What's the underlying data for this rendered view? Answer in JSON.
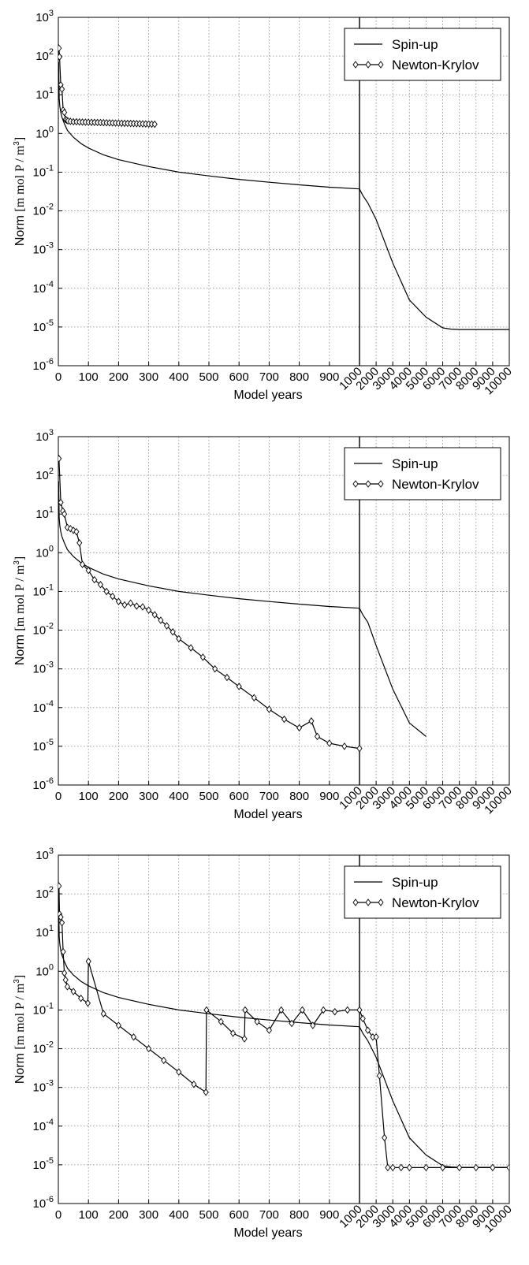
{
  "chart_data": [
    {
      "type": "line",
      "title": "",
      "xlabel": "Model years",
      "ylabel": "Norm [m mol P / m³]",
      "ylabel_parts": [
        "Norm ",
        "[m mol P / m",
        "3",
        "]"
      ],
      "yscale": "log",
      "ylim": [
        1e-06,
        1000.0
      ],
      "x_axis_break": 1000,
      "xlim": [
        0,
        10000
      ],
      "grid": true,
      "legend_placement": "top-right",
      "y_ticks": [
        {
          "base": "10",
          "exp": "-6",
          "value": 1e-06
        },
        {
          "base": "10",
          "exp": "-5",
          "value": 1e-05
        },
        {
          "base": "10",
          "exp": "-4",
          "value": 0.0001
        },
        {
          "base": "10",
          "exp": "-3",
          "value": 0.001
        },
        {
          "base": "10",
          "exp": "-2",
          "value": 0.01
        },
        {
          "base": "10",
          "exp": "-1",
          "value": 0.1
        },
        {
          "base": "10",
          "exp": "0",
          "value": 1
        },
        {
          "base": "10",
          "exp": "1",
          "value": 10
        },
        {
          "base": "10",
          "exp": "2",
          "value": 100
        },
        {
          "base": "10",
          "exp": "3",
          "value": 1000
        }
      ],
      "x_ticks_left": [
        "0",
        "100",
        "200",
        "300",
        "400",
        "500",
        "600",
        "700",
        "800",
        "900"
      ],
      "x_ticks_right": [
        "1000",
        "2000",
        "3000",
        "4000",
        "5000",
        "6000",
        "7000",
        "8000",
        "9000",
        "10000"
      ],
      "series": [
        {
          "name": "Spin-up",
          "style": "line",
          "x": [
            1,
            2,
            3,
            5,
            8,
            12,
            20,
            30,
            50,
            75,
            100,
            150,
            200,
            300,
            400,
            500,
            600,
            700,
            800,
            900,
            1000,
            1200,
            1500,
            2000,
            3000,
            4000,
            5000,
            6000,
            6500,
            7000,
            8000,
            9000,
            10000
          ],
          "y": [
            70,
            20,
            8,
            5,
            3.5,
            2.6,
            1.8,
            1.2,
            0.8,
            0.55,
            0.42,
            0.28,
            0.21,
            0.14,
            0.1,
            0.08,
            0.065,
            0.055,
            0.047,
            0.041,
            0.037,
            0.025,
            0.016,
            0.006,
            0.00045,
            5e-05,
            1.8e-05,
            9.5e-06,
            8.8e-06,
            8.6e-06,
            8.6e-06,
            8.6e-06,
            8.6e-06
          ]
        },
        {
          "name": "Newton-Krylov",
          "style": "line-diamond",
          "x": [
            2,
            4,
            8,
            12,
            16,
            20,
            24,
            28,
            32,
            40,
            50,
            60,
            70,
            80,
            90,
            100,
            110,
            120,
            130,
            140,
            150,
            160,
            170,
            180,
            190,
            200,
            210,
            220,
            230,
            240,
            250,
            260,
            270,
            280,
            290,
            300,
            310,
            320
          ],
          "y": [
            160,
            95,
            18,
            14,
            4,
            3.5,
            2.3,
            2.2,
            2.1,
            2.05,
            2.0,
            2.0,
            1.98,
            1.97,
            1.96,
            1.95,
            1.94,
            1.93,
            1.92,
            1.91,
            1.9,
            1.89,
            1.88,
            1.87,
            1.86,
            1.85,
            1.84,
            1.83,
            1.82,
            1.81,
            1.8,
            1.79,
            1.78,
            1.77,
            1.76,
            1.75,
            1.74,
            1.73
          ]
        }
      ]
    },
    {
      "type": "line",
      "title": "",
      "xlabel": "Model years",
      "ylabel": "Norm [m mol P / m³]",
      "ylabel_parts": [
        "Norm ",
        "[m mol P / m",
        "3",
        "]"
      ],
      "yscale": "log",
      "ylim": [
        1e-06,
        1000.0
      ],
      "x_axis_break": 1000,
      "xlim": [
        0,
        10000
      ],
      "grid": true,
      "legend_placement": "top-right",
      "y_ticks": [
        {
          "base": "10",
          "exp": "-6",
          "value": 1e-06
        },
        {
          "base": "10",
          "exp": "-5",
          "value": 1e-05
        },
        {
          "base": "10",
          "exp": "-4",
          "value": 0.0001
        },
        {
          "base": "10",
          "exp": "-3",
          "value": 0.001
        },
        {
          "base": "10",
          "exp": "-2",
          "value": 0.01
        },
        {
          "base": "10",
          "exp": "-1",
          "value": 0.1
        },
        {
          "base": "10",
          "exp": "0",
          "value": 1
        },
        {
          "base": "10",
          "exp": "1",
          "value": 10
        },
        {
          "base": "10",
          "exp": "2",
          "value": 100
        },
        {
          "base": "10",
          "exp": "3",
          "value": 1000
        }
      ],
      "x_ticks_left": [
        "0",
        "100",
        "200",
        "300",
        "400",
        "500",
        "600",
        "700",
        "800",
        "900"
      ],
      "x_ticks_right": [
        "1000",
        "2000",
        "3000",
        "4000",
        "5000",
        "6000",
        "7000",
        "8000",
        "9000",
        "10000"
      ],
      "series": [
        {
          "name": "Spin-up",
          "style": "line",
          "x": [
            1,
            2,
            3,
            5,
            8,
            12,
            20,
            30,
            50,
            75,
            100,
            150,
            200,
            300,
            400,
            500,
            600,
            700,
            800,
            900,
            1000,
            1200,
            1500,
            2000,
            3000,
            4000,
            5000
          ],
          "y": [
            70,
            20,
            8,
            5,
            3.5,
            2.6,
            1.8,
            1.2,
            0.8,
            0.55,
            0.42,
            0.28,
            0.21,
            0.14,
            0.1,
            0.08,
            0.065,
            0.055,
            0.047,
            0.041,
            0.037,
            0.025,
            0.016,
            0.004,
            0.0003,
            4e-05,
            1.8e-05
          ]
        },
        {
          "name": "Newton-Krylov",
          "style": "line-diamond",
          "x": [
            2,
            8,
            15,
            20,
            30,
            40,
            50,
            60,
            70,
            80,
            100,
            120,
            140,
            160,
            180,
            200,
            220,
            240,
            260,
            280,
            300,
            320,
            340,
            360,
            380,
            400,
            440,
            480,
            520,
            560,
            600,
            650,
            700,
            750,
            800,
            840,
            860,
            900,
            950,
            1000
          ],
          "y": [
            270,
            20,
            12,
            10,
            4.5,
            4.2,
            3.8,
            3.5,
            1.8,
            0.5,
            0.35,
            0.2,
            0.15,
            0.1,
            0.075,
            0.055,
            0.045,
            0.05,
            0.042,
            0.04,
            0.033,
            0.025,
            0.018,
            0.013,
            0.009,
            0.006,
            0.0035,
            0.002,
            0.001,
            0.0006,
            0.00035,
            0.00018,
            9e-05,
            5e-05,
            3e-05,
            4.5e-05,
            1.8e-05,
            1.2e-05,
            1e-05,
            8.8e-06
          ]
        }
      ]
    },
    {
      "type": "line",
      "title": "",
      "xlabel": "Model years",
      "ylabel": "Norm [m mol P / m³]",
      "ylabel_parts": [
        "Norm ",
        "[m mol P / m",
        "3",
        "]"
      ],
      "yscale": "log",
      "ylim": [
        1e-06,
        1000.0
      ],
      "x_axis_break": 1000,
      "xlim": [
        0,
        10000
      ],
      "grid": true,
      "legend_placement": "top-right",
      "y_ticks": [
        {
          "base": "10",
          "exp": "-6",
          "value": 1e-06
        },
        {
          "base": "10",
          "exp": "-5",
          "value": 1e-05
        },
        {
          "base": "10",
          "exp": "-4",
          "value": 0.0001
        },
        {
          "base": "10",
          "exp": "-3",
          "value": 0.001
        },
        {
          "base": "10",
          "exp": "-2",
          "value": 0.01
        },
        {
          "base": "10",
          "exp": "-1",
          "value": 0.1
        },
        {
          "base": "10",
          "exp": "0",
          "value": 1
        },
        {
          "base": "10",
          "exp": "1",
          "value": 10
        },
        {
          "base": "10",
          "exp": "2",
          "value": 100
        },
        {
          "base": "10",
          "exp": "3",
          "value": 1000
        }
      ],
      "x_ticks_left": [
        "0",
        "100",
        "200",
        "300",
        "400",
        "500",
        "600",
        "700",
        "800",
        "900"
      ],
      "x_ticks_right": [
        "1000",
        "2000",
        "3000",
        "4000",
        "5000",
        "6000",
        "7000",
        "8000",
        "9000",
        "10000"
      ],
      "series": [
        {
          "name": "Spin-up",
          "style": "line",
          "x": [
            1,
            2,
            3,
            5,
            8,
            12,
            20,
            30,
            50,
            75,
            100,
            150,
            200,
            300,
            400,
            500,
            600,
            700,
            800,
            900,
            1000,
            1200,
            1500,
            2000,
            3000,
            4000,
            5000,
            6000,
            6500,
            7000,
            8000,
            9000,
            10000
          ],
          "y": [
            70,
            20,
            8,
            5,
            3.5,
            2.6,
            1.8,
            1.2,
            0.8,
            0.55,
            0.42,
            0.28,
            0.21,
            0.14,
            0.1,
            0.08,
            0.065,
            0.055,
            0.047,
            0.041,
            0.037,
            0.025,
            0.016,
            0.006,
            0.00045,
            5e-05,
            1.8e-05,
            9.5e-06,
            8.8e-06,
            8.6e-06,
            8.6e-06,
            8.6e-06,
            8.6e-06
          ]
        },
        {
          "name": "Newton-Krylov",
          "style": "line-diamond",
          "x": [
            2,
            4,
            8,
            12,
            16,
            20,
            24,
            30,
            50,
            75,
            98,
            100,
            150,
            200,
            250,
            300,
            350,
            400,
            450,
            490,
            492,
            540,
            580,
            618,
            620,
            660,
            700,
            740,
            775,
            810,
            845,
            880,
            918,
            960,
            1000,
            1200,
            1500,
            1800,
            2000,
            2200,
            2500,
            2700,
            3000,
            3500,
            4000,
            5000,
            6000,
            7000,
            8000,
            9000,
            10000
          ],
          "y": [
            160,
            30,
            25,
            18,
            3.2,
            0.9,
            0.6,
            0.4,
            0.3,
            0.2,
            0.15,
            1.8,
            0.08,
            0.04,
            0.02,
            0.01,
            0.005,
            0.0025,
            0.0012,
            0.00075,
            0.1,
            0.05,
            0.025,
            0.018,
            0.1,
            0.05,
            0.03,
            0.1,
            0.045,
            0.1,
            0.04,
            0.1,
            0.09,
            0.1,
            0.1,
            0.06,
            0.03,
            0.02,
            0.02,
            0.002,
            5e-05,
            8.5e-06,
            8.5e-06,
            8.5e-06,
            8.5e-06,
            8.5e-06,
            8.5e-06,
            8.5e-06,
            8.5e-06,
            8.5e-06,
            8.5e-06
          ]
        }
      ]
    }
  ]
}
